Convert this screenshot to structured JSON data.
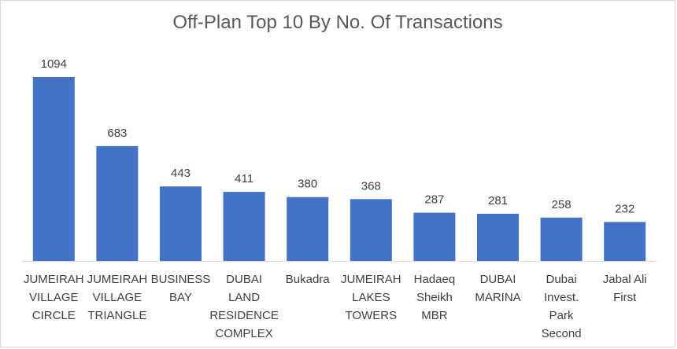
{
  "chart_data": {
    "type": "bar",
    "title": "Off-Plan Top 10 By No. Of Transactions",
    "xlabel": "",
    "ylabel": "",
    "ylim": [
      0,
      1094
    ],
    "grid": false,
    "legend": "none",
    "bar_color": "#4472c4",
    "categories": [
      [
        "JUMEIRAH",
        "VILLAGE",
        "CIRCLE"
      ],
      [
        "JUMEIRAH",
        "VILLAGE",
        "TRIANGLE"
      ],
      [
        "BUSINESS",
        "BAY"
      ],
      [
        "DUBAI",
        "LAND",
        "RESIDENCE",
        "COMPLEX"
      ],
      [
        "Bukadra"
      ],
      [
        "JUMEIRAH",
        "LAKES",
        "TOWERS"
      ],
      [
        "Hadaeq",
        "Sheikh",
        "MBR"
      ],
      [
        "DUBAI",
        "MARINA"
      ],
      [
        "Dubai",
        "Invest.",
        "Park",
        "Second"
      ],
      [
        "Jabal Ali",
        "First"
      ]
    ],
    "values": [
      1094,
      683,
      443,
      411,
      380,
      368,
      287,
      281,
      258,
      232
    ]
  }
}
